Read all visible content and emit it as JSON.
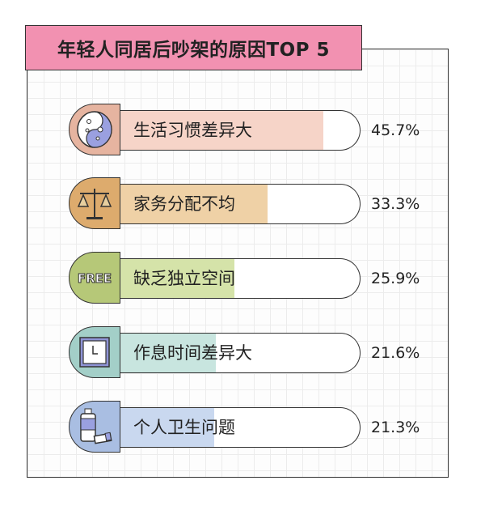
{
  "chart_data": {
    "type": "bar",
    "title": "年轻人同居后吵架的原因TOP 5",
    "categories": [
      "生活习惯差异大",
      "家务分配不均",
      "缺乏独立空间",
      "作息时间差异大",
      "个人卫生问题"
    ],
    "values": [
      45.7,
      33.3,
      25.9,
      21.6,
      21.3
    ],
    "value_labels": [
      "45.7%",
      "33.3%",
      "25.9%",
      "21.6%",
      "21.3%"
    ],
    "xlim": [
      0,
      53.8
    ],
    "orientation": "horizontal",
    "grid": false,
    "icons": [
      "yin-yang-face-icon",
      "balance-scale-icon",
      "free-badge-icon",
      "clock-icon",
      "lotion-bottle-icon"
    ],
    "icon_text": [
      "",
      "",
      "FREE",
      "",
      ""
    ],
    "fill_colors": [
      "#f6d4c8",
      "#efd1a6",
      "#d5e3a9",
      "#c8e5df",
      "#c9d8ef"
    ],
    "icon_colors": [
      "#e6b4a0",
      "#ddab6d",
      "#b6c878",
      "#a3cfc8",
      "#a9bee2"
    ],
    "title_color": "#f291b1"
  }
}
